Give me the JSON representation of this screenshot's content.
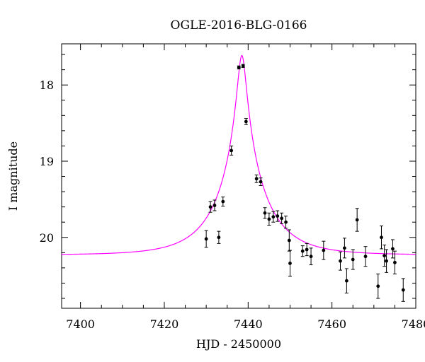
{
  "chart_data": {
    "type": "scatter",
    "title": "OGLE-2016-BLG-0166",
    "xlabel": "HJD - 2450000",
    "ylabel": "I magnitude",
    "xlim": [
      7395.5,
      7480
    ],
    "ylim": [
      20.93,
      17.46
    ],
    "y_inverted": true,
    "x_ticks": [
      7400,
      7420,
      7440,
      7460,
      7480
    ],
    "y_ticks": [
      18,
      19,
      20
    ],
    "x_minor_step": 5,
    "y_minor_step": 0.2,
    "grid": false,
    "legend": "none",
    "colors": {
      "data": "#000000",
      "model": "#ff00ff",
      "axes": "#000000"
    },
    "series": [
      {
        "type": "errorbar",
        "x": [
          7430.0,
          7431.0,
          7432.0,
          7433.0,
          7434.0,
          7436.0,
          7437.8,
          7438.8,
          7439.5,
          7442.0,
          7443.0,
          7444.0,
          7445.0,
          7446.0,
          7447.0,
          7448.0,
          7449.0,
          7449.8,
          7450.0,
          7453.0,
          7454.0,
          7455.0,
          7458.0,
          7462.0,
          7463.0,
          7463.5,
          7465.0,
          7466.0,
          7468.0,
          7471.0,
          7471.8,
          7472.5,
          7473.0,
          7474.5,
          7475.0,
          7477.0
        ],
        "y": [
          20.02,
          19.6,
          19.58,
          20.0,
          19.53,
          18.86,
          17.77,
          17.75,
          18.48,
          19.23,
          19.27,
          19.68,
          19.76,
          19.73,
          19.72,
          19.75,
          19.8,
          20.04,
          20.34,
          20.18,
          20.16,
          20.25,
          20.17,
          20.31,
          20.14,
          20.57,
          20.29,
          19.77,
          20.25,
          20.64,
          20.0,
          20.24,
          20.31,
          20.15,
          20.33,
          20.69
        ],
        "yerr": [
          0.11,
          0.07,
          0.07,
          0.08,
          0.06,
          0.06,
          0.02,
          0.02,
          0.04,
          0.05,
          0.05,
          0.07,
          0.08,
          0.07,
          0.07,
          0.07,
          0.08,
          0.14,
          0.17,
          0.07,
          0.08,
          0.11,
          0.12,
          0.12,
          0.13,
          0.16,
          0.13,
          0.15,
          0.13,
          0.16,
          0.15,
          0.14,
          0.15,
          0.12,
          0.15,
          0.15
        ]
      },
      {
        "type": "line",
        "model": {
          "t0": 7438.5,
          "u0": 0.09,
          "tE": 11.0,
          "I_base": 20.23
        }
      }
    ]
  }
}
